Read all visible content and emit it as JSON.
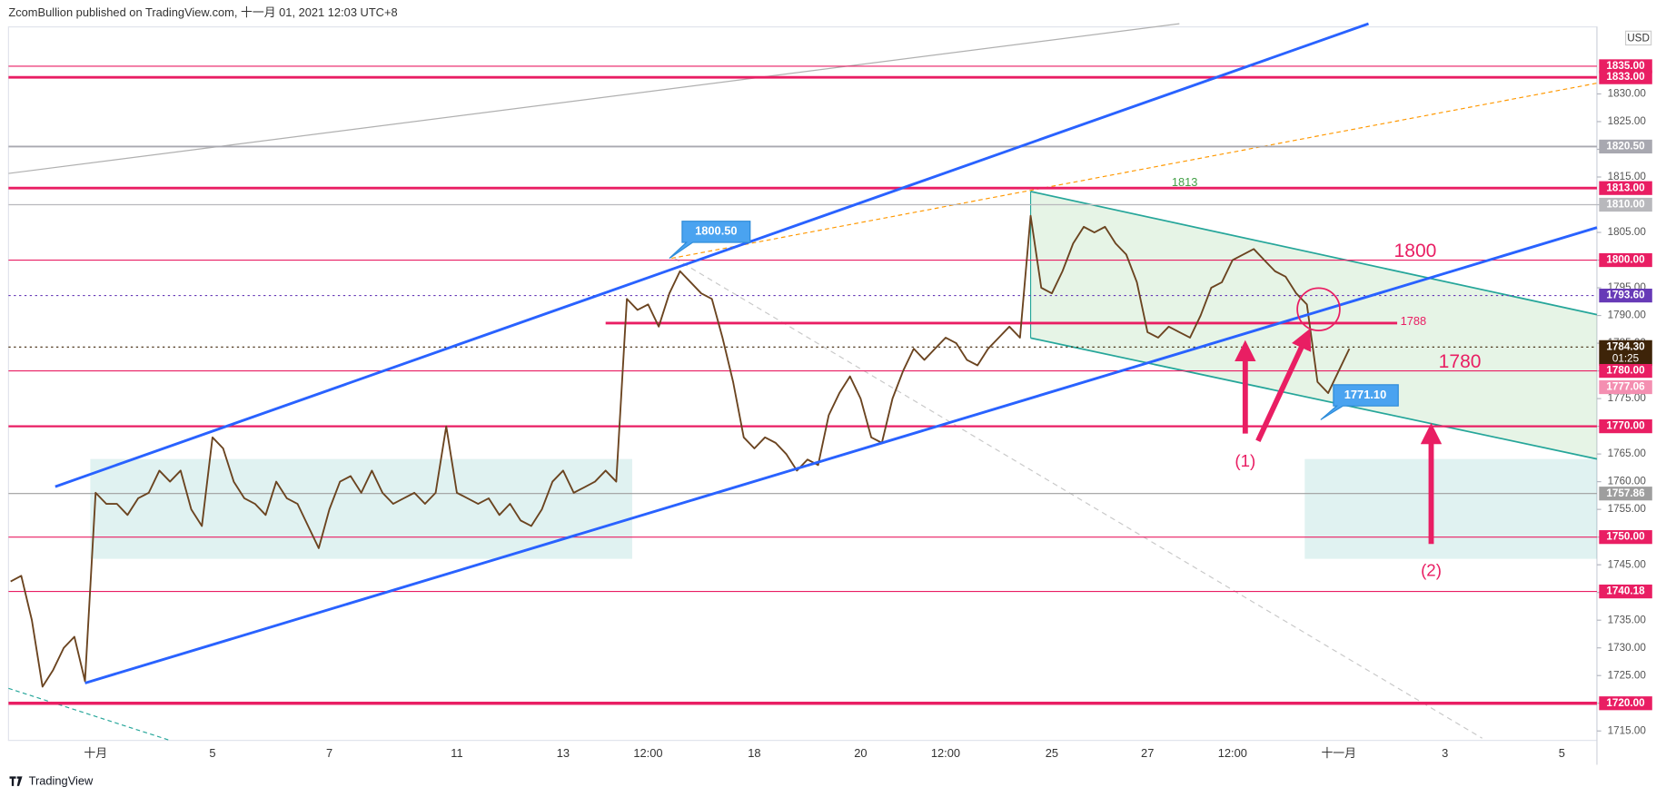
{
  "header": "ZcomBullion published on TradingView.com, 十一月 01, 2021 12:03 UTC+8",
  "footer": "TradingView",
  "chart_data": {
    "type": "line",
    "currency": "USD",
    "color": "#6b4420",
    "categories": [
      null,
      null,
      null,
      null,
      null,
      null,
      null,
      null,
      "十月",
      null,
      null,
      null,
      null,
      null,
      null,
      null,
      null,
      null,
      null,
      "5",
      null,
      null,
      null,
      null,
      null,
      null,
      null,
      null,
      null,
      null,
      "7",
      null,
      null,
      null,
      null,
      null,
      null,
      null,
      null,
      null,
      null,
      null,
      "11",
      null,
      null,
      null,
      null,
      null,
      null,
      null,
      null,
      null,
      "13",
      null,
      null,
      null,
      null,
      null,
      null,
      null,
      "12:00",
      null,
      null,
      null,
      null,
      null,
      null,
      null,
      null,
      null,
      "18",
      null,
      null,
      null,
      null,
      null,
      null,
      null,
      null,
      null,
      "20",
      null,
      null,
      null,
      null,
      null,
      null,
      null,
      "12:00",
      null,
      null,
      null,
      null,
      null,
      null,
      null,
      null,
      null,
      "25",
      null,
      null,
      null,
      null,
      null,
      null,
      null,
      null,
      "27",
      null,
      null,
      null,
      null,
      null,
      null,
      null,
      "12:00",
      null,
      null,
      null,
      null,
      null,
      null,
      null,
      null,
      null,
      "十一月",
      null,
      null,
      null,
      null,
      null,
      null,
      null,
      null,
      null,
      "3",
      null,
      null,
      null,
      null,
      null,
      null,
      null,
      null,
      null,
      null,
      "5",
      null,
      null,
      null
    ],
    "values": [
      1742,
      1743,
      1735,
      1723,
      1726,
      1730,
      1732,
      1724,
      1758,
      1756,
      1756,
      1754,
      1757,
      1758,
      1762,
      1760,
      1762,
      1755,
      1752,
      1768,
      1766,
      1760,
      1757,
      1756,
      1754,
      1760,
      1757,
      1756,
      1752,
      1748,
      1755,
      1760,
      1761,
      1758,
      1762,
      1758,
      1756,
      1757,
      1758,
      1756,
      1758,
      1770,
      1758,
      1757,
      1756,
      1757,
      1754,
      1756,
      1753,
      1752,
      1755,
      1760,
      1762,
      1758,
      1759,
      1760,
      1762,
      1760,
      1793,
      1791,
      1792,
      1788,
      1794,
      1798,
      1796,
      1794,
      1793,
      1786,
      1778,
      1768,
      1766,
      1768,
      1767,
      1765,
      1762,
      1764,
      1763,
      1772,
      1776,
      1779,
      1775,
      1768,
      1767,
      1775,
      1780,
      1784,
      1782,
      1784,
      1786,
      1785,
      1782,
      1781,
      1784,
      1786,
      1788,
      1786,
      1808,
      1795,
      1794,
      1798,
      1803,
      1806,
      1805,
      1806,
      1803,
      1801,
      1796,
      1787,
      1786,
      1788,
      1787,
      1786,
      1790,
      1795,
      1796,
      1800,
      1801,
      1802,
      1800,
      1798,
      1797,
      1794,
      1792,
      1778,
      1776,
      1780,
      1784,
      null,
      null,
      null,
      null,
      null,
      null,
      null,
      null,
      null,
      null,
      null,
      null,
      null,
      null,
      null,
      null,
      null,
      null,
      null,
      null,
      null,
      null,
      null
    ],
    "ylim": [
      1713.3,
      1842.1
    ],
    "yticks": [
      {
        "value": 1715,
        "label": "1715.00"
      },
      {
        "value": 1720,
        "label": "1720.00"
      },
      {
        "value": 1725,
        "label": "1725.00"
      },
      {
        "value": 1730,
        "label": "1730.00"
      },
      {
        "value": 1735,
        "label": "1735.00"
      },
      {
        "value": 1740,
        "label": "1740.00"
      },
      {
        "value": 1745,
        "label": "1745.00"
      },
      {
        "value": 1750,
        "label": "1750.00"
      },
      {
        "value": 1755,
        "label": "1755.00"
      },
      {
        "value": 1760,
        "label": "1760.00"
      },
      {
        "value": 1765,
        "label": "1765.00"
      },
      {
        "value": 1770,
        "label": "1770.00"
      },
      {
        "value": 1775,
        "label": "1775.00"
      },
      {
        "value": 1780,
        "label": "1780.00"
      },
      {
        "value": 1785,
        "label": "1785.00"
      },
      {
        "value": 1790,
        "label": "1790.00"
      },
      {
        "value": 1795,
        "label": "1795.00"
      },
      {
        "value": 1800,
        "label": "1800.00"
      },
      {
        "value": 1805,
        "label": "1805.00"
      },
      {
        "value": 1810,
        "label": "1810.00"
      },
      {
        "value": 1815,
        "label": "1815.00"
      },
      {
        "value": 1820,
        "label": "1820.00"
      },
      {
        "value": 1825,
        "label": "1825.00"
      },
      {
        "value": 1830,
        "label": "1830.00"
      }
    ],
    "grid": false,
    "levels": [
      {
        "value": 1835,
        "label": "1835.00",
        "color": "#e91e63",
        "width": 1
      },
      {
        "value": 1833,
        "label": "1833.00",
        "color": "#e91e63",
        "width": 2.5
      },
      {
        "value": 1820.5,
        "label": "1820.50",
        "color": "#a8a8b0",
        "width": 1.5
      },
      {
        "value": 1813,
        "label": "1813.00",
        "color": "#e91e63",
        "width": 2.5
      },
      {
        "value": 1810,
        "label": "1810.00",
        "color": "#b8b8bc",
        "width": 1
      },
      {
        "value": 1800,
        "label": "1800.00",
        "color": "#e91e63",
        "width": 1
      },
      {
        "value": 1793.6,
        "label": "1793.60",
        "color": "#673ab7",
        "width": 1,
        "dash": true
      },
      {
        "value": 1784.3,
        "label": "1784.30",
        "color": "#3e2409",
        "width": 1,
        "dash": true,
        "countdown": "01:25"
      },
      {
        "value": 1780,
        "label": "1780.00",
        "color": "#e91e63",
        "width": 1
      },
      {
        "value": 1777.06,
        "label": "1777.06",
        "color": "#f48fb1",
        "width": 0
      },
      {
        "value": 1770,
        "label": "1770.00",
        "color": "#e91e63",
        "width": 2
      },
      {
        "value": 1757.86,
        "label": "1757.86",
        "color": "#9e9e9e",
        "width": 1
      },
      {
        "value": 1750,
        "label": "1750.00",
        "color": "#e91e63",
        "width": 1
      },
      {
        "value": 1740.18,
        "label": "1740.18",
        "color": "#e91e63",
        "width": 1
      },
      {
        "value": 1720,
        "label": "1720.00",
        "color": "#e91e63",
        "width": 3
      }
    ],
    "annotations": {
      "high_callout": "1800.50",
      "low_callout": "1771.10",
      "channel_top": "1813",
      "support_line": "1788",
      "big_upper": "1800",
      "big_lower": "1780",
      "arrow_group_1": "(1)",
      "arrow_group_2": "(2)"
    }
  }
}
